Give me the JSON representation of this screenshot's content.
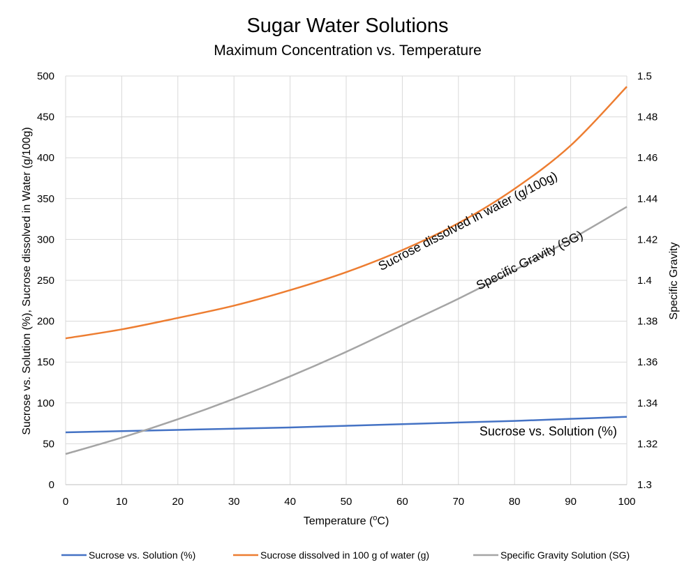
{
  "chart_data": {
    "type": "line",
    "title": "Sugar Water Solutions",
    "subtitle": "Maximum Concentration vs. Temperature",
    "xlabel": "Temperature (oC)",
    "xlabel_parts": {
      "pre": "Temperature (",
      "sup": "o",
      "post": "C)"
    },
    "ylabel": "Sucrose vs. Solution (%), Sucrose dissolved in Water (g/100g)",
    "y2label": "Specific Gravity",
    "xlim": [
      0,
      100
    ],
    "ylim": [
      0,
      500
    ],
    "y2lim": [
      1.3,
      1.5
    ],
    "x_ticks": [
      0,
      10,
      20,
      30,
      40,
      50,
      60,
      70,
      80,
      90,
      100
    ],
    "y_ticks": [
      0,
      50,
      100,
      150,
      200,
      250,
      300,
      350,
      400,
      450,
      500
    ],
    "y2_ticks": [
      "1.3",
      "1.32",
      "1.34",
      "1.36",
      "1.38",
      "1.4",
      "1.42",
      "1.44",
      "1.46",
      "1.48",
      "1.5"
    ],
    "grid": true,
    "legend_position": "bottom",
    "series": [
      {
        "name": "Sucrose vs. Solution (%)",
        "axis": "left",
        "color": "#4472c4",
        "x": [
          0,
          10,
          20,
          30,
          40,
          50,
          60,
          70,
          80,
          90,
          100
        ],
        "y": [
          64,
          65.5,
          67,
          68.5,
          70,
          72,
          74,
          76,
          78,
          80.5,
          83
        ]
      },
      {
        "name": "Sucrose dissolved in 100 g of water (g)",
        "axis": "left",
        "color": "#ed7d31",
        "x": [
          0,
          10,
          20,
          30,
          40,
          50,
          60,
          70,
          80,
          90,
          100
        ],
        "y": [
          179,
          190,
          204,
          219,
          238,
          260,
          287,
          320,
          362,
          415,
          487
        ]
      },
      {
        "name": "Specific Gravity Solution (SG)",
        "axis": "right",
        "color": "#a5a5a5",
        "x": [
          0,
          10,
          20,
          30,
          40,
          50,
          60,
          70,
          80,
          90,
          100
        ],
        "y": [
          1.315,
          1.323,
          1.332,
          1.342,
          1.353,
          1.365,
          1.378,
          1.391,
          1.405,
          1.42,
          1.436
        ]
      }
    ],
    "annotations": [
      {
        "text": "Sucrose dissolved in water (g/100g)",
        "x": 72,
        "y": 318,
        "angle": -27.5
      },
      {
        "text": "Specific Gravity (SG)",
        "x": 83,
        "y": 1.408,
        "angle": -26.5
      },
      {
        "text": "Sucrose vs. Solution (%)",
        "x": 86,
        "y": 60,
        "angle": 0
      }
    ]
  }
}
